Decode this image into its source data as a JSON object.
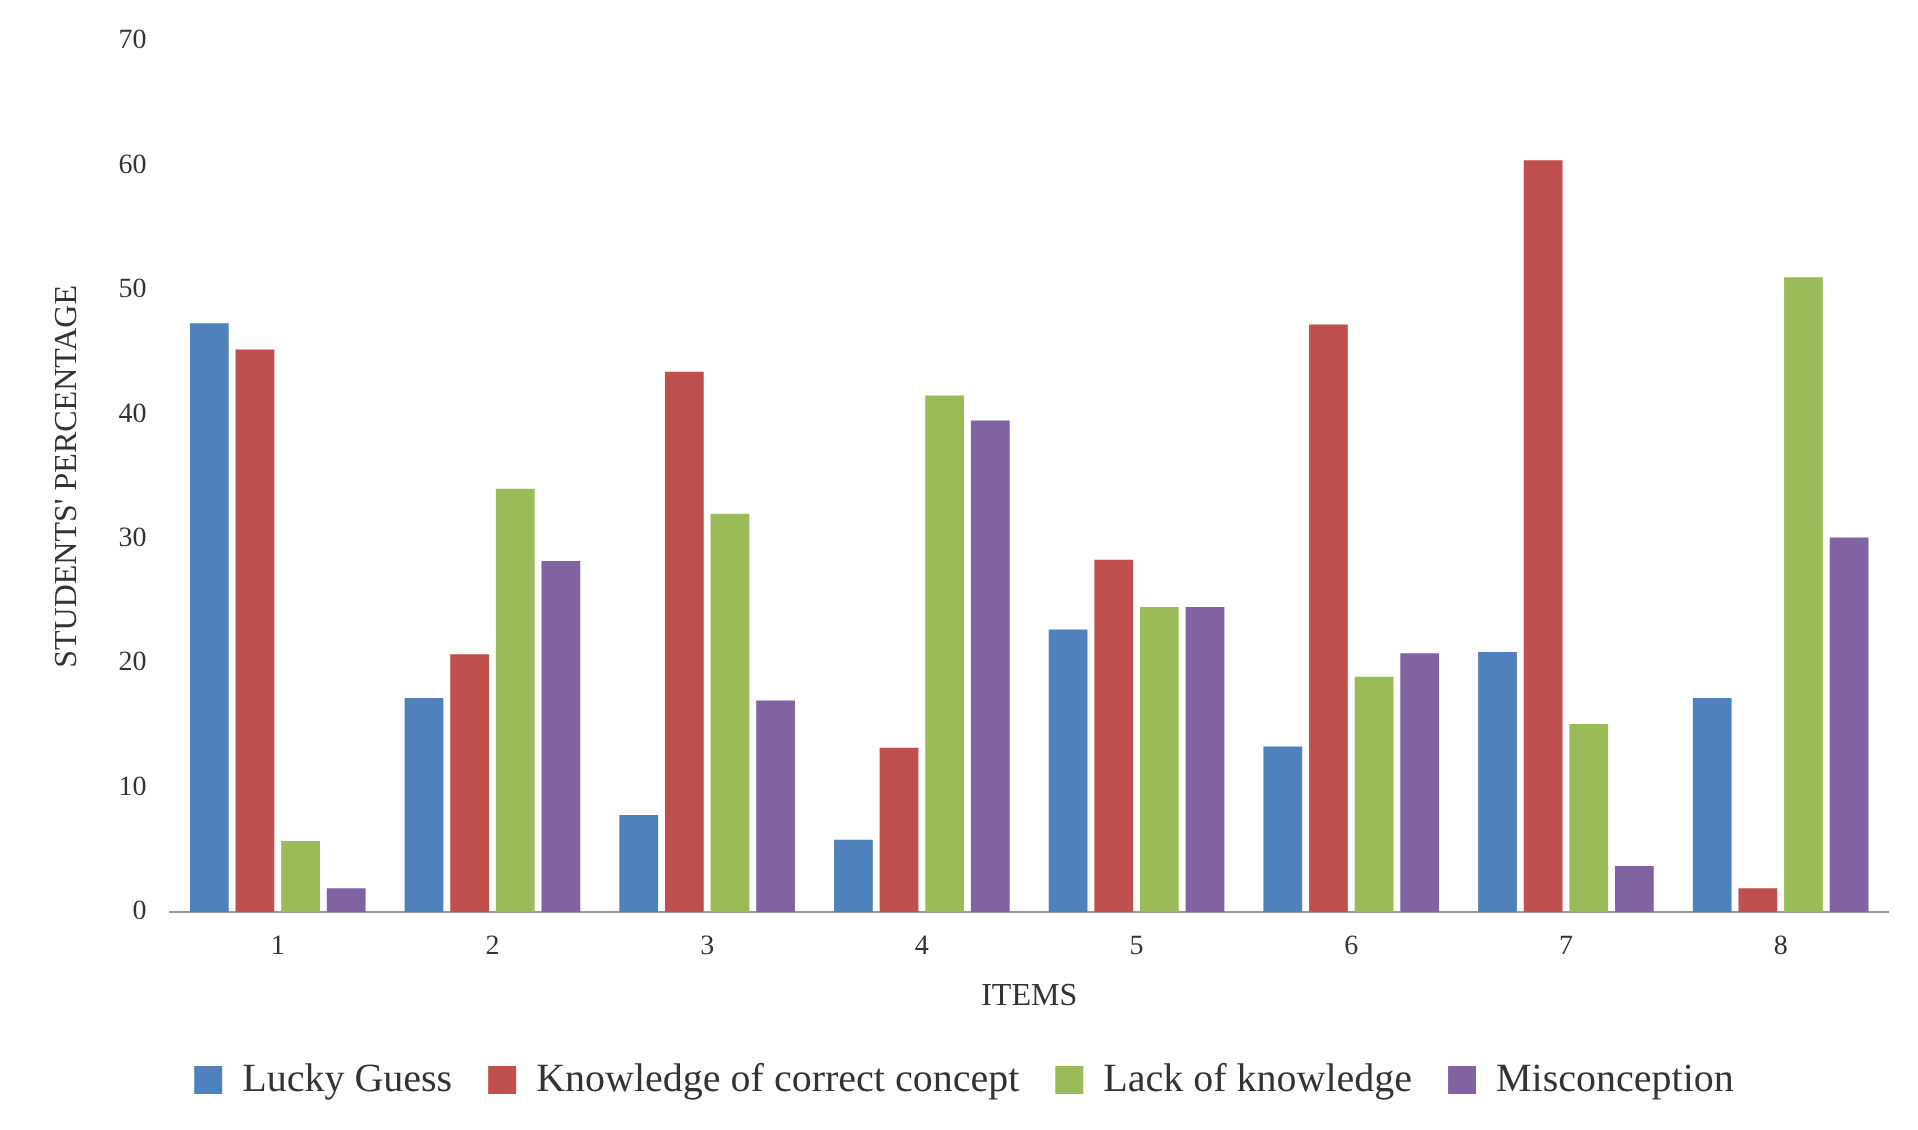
{
  "chart_data": {
    "type": "bar",
    "xlabel": "ITEMS",
    "ylabel": "STUDENTS' PERCENTAGE",
    "categories": [
      "1",
      "2",
      "3",
      "4",
      "5",
      "6",
      "7",
      "8"
    ],
    "series": [
      {
        "name": "Lucky Guess",
        "color": "#4f81bd",
        "values": [
          47.3,
          17.2,
          7.8,
          5.8,
          22.7,
          13.3,
          20.9,
          17.2
        ]
      },
      {
        "name": "Knowledge of correct concept",
        "color": "#c0504d",
        "values": [
          45.2,
          20.7,
          43.4,
          13.2,
          28.3,
          47.2,
          60.4,
          1.9
        ]
      },
      {
        "name": "Lack of knowledge",
        "color": "#9bbb59",
        "values": [
          5.7,
          34,
          32,
          41.5,
          24.5,
          18.9,
          15.1,
          51
        ]
      },
      {
        "name": "Misconception",
        "color": "#8064a2",
        "values": [
          1.9,
          28.2,
          17,
          39.5,
          24.5,
          20.8,
          3.7,
          30.1
        ]
      }
    ],
    "ylim": [
      0,
      70
    ],
    "yticks": [
      0,
      10,
      20,
      30,
      40,
      50,
      60,
      70
    ],
    "grid": false,
    "legend": "bottom"
  }
}
